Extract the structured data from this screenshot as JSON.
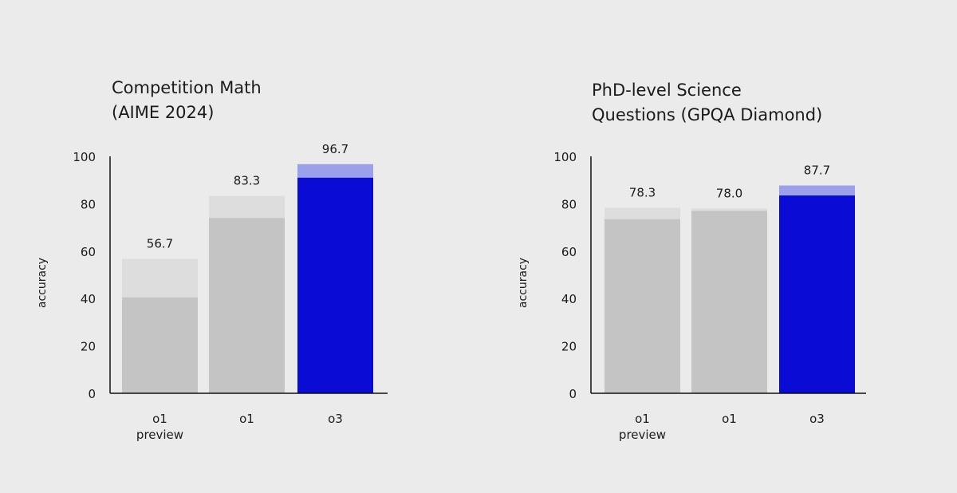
{
  "chart_data": [
    {
      "type": "bar",
      "title_lines": [
        "Competition Math",
        "(AIME 2024)"
      ],
      "ylabel": "accuracy",
      "ylim": [
        0,
        100
      ],
      "yticks": [
        0,
        20,
        40,
        60,
        80,
        100
      ],
      "categories": [
        [
          "o1",
          "preview"
        ],
        [
          "o1"
        ],
        [
          "o3"
        ]
      ],
      "values": [
        56.7,
        83.3,
        96.7
      ],
      "base_values": [
        40.5,
        74.0,
        91.0
      ],
      "value_labels": [
        "56.7",
        "83.3",
        "96.7"
      ],
      "colors": {
        "base": [
          "#c4c4c4",
          "#c4c4c4",
          "#0b0bd6"
        ],
        "top": [
          "#dddddd",
          "#dddddd",
          "#9aa0ea"
        ]
      },
      "grid": false,
      "legend": "none"
    },
    {
      "type": "bar",
      "title_lines": [
        "PhD-level Science",
        "Questions (GPQA Diamond)"
      ],
      "ylabel": "accuracy",
      "ylim": [
        0,
        100
      ],
      "yticks": [
        0,
        20,
        40,
        60,
        80,
        100
      ],
      "categories": [
        [
          "o1",
          "preview"
        ],
        [
          "o1"
        ],
        [
          "o3"
        ]
      ],
      "values": [
        78.3,
        78.0,
        87.7
      ],
      "base_values": [
        73.5,
        77.0,
        83.5
      ],
      "value_labels": [
        "78.3",
        "78.0",
        "87.7"
      ],
      "colors": {
        "base": [
          "#c4c4c4",
          "#c4c4c4",
          "#0b0bd6"
        ],
        "top": [
          "#dddddd",
          "#dddddd",
          "#9aa0ea"
        ]
      },
      "grid": false,
      "legend": "none"
    }
  ]
}
